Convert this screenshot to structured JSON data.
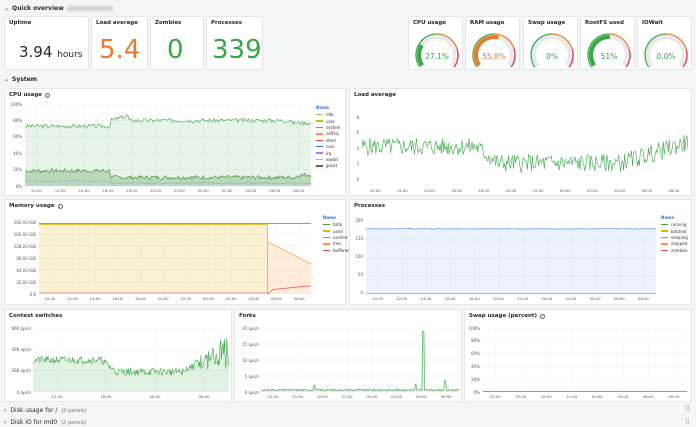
{
  "sections": {
    "quick_overview": "Quick overview",
    "system": "System",
    "disk_usage": "Disk usage for /",
    "disk_usage_count": "(2 panels)",
    "disk_io": "Disk IO for md0",
    "disk_io_count": "(2 panels)"
  },
  "stats": {
    "uptime": {
      "title": "Uptime",
      "value": "3.94",
      "unit": "hours"
    },
    "load": {
      "title": "Load average",
      "value": "5.4",
      "color": "#ec7a2a"
    },
    "zombies": {
      "title": "Zombies",
      "value": "0",
      "color": "#37a744"
    },
    "processes": {
      "title": "Processes",
      "value": "339",
      "color": "#37a744"
    }
  },
  "gauges": [
    {
      "title": "CPU usage",
      "value": "27.1%",
      "fraction": 0.271,
      "color": "#37a744"
    },
    {
      "title": "RAM usage",
      "value": "55.8%",
      "fraction": 0.558,
      "color": "#ec7a2a"
    },
    {
      "title": "Swap usage",
      "value": "0%",
      "fraction": 0,
      "color": "#37a744"
    },
    {
      "title": "RootFS used",
      "value": "51%",
      "fraction": 0.51,
      "color": "#37a744"
    },
    {
      "title": "IOWait",
      "value": "0.0%",
      "fraction": 0,
      "color": "#37a744"
    }
  ],
  "panels": {
    "cpu": {
      "title": "CPU usage",
      "yticks": [
        "100%",
        "80%",
        "60%",
        "40%",
        "20%",
        "0%"
      ],
      "xticks": [
        "10:00",
        "12:00",
        "14:00",
        "16:00",
        "18:00",
        "20:00",
        "22:00",
        "00:00",
        "02:00",
        "04:00",
        "06:00",
        "08:00"
      ],
      "legend_header": "Name",
      "legend": [
        {
          "name": "idle",
          "color": "#9ac48a"
        },
        {
          "name": "user",
          "color": "#e0b400"
        },
        {
          "name": "system",
          "color": "#5794f2"
        },
        {
          "name": "softirq",
          "color": "#ff9830"
        },
        {
          "name": "steal",
          "color": "#f2495c"
        },
        {
          "name": "nice",
          "color": "#3274d9"
        },
        {
          "name": "irq",
          "color": "#b877d9"
        },
        {
          "name": "iowait",
          "color": "#8ab8ff"
        },
        {
          "name": "guest",
          "color": "#37872d"
        }
      ]
    },
    "load": {
      "title": "Load average",
      "yticks": [
        "8",
        "6",
        "4",
        "2",
        "0"
      ],
      "xticks": [
        "10:00",
        "12:00",
        "14:00",
        "16:00",
        "18:00",
        "20:00",
        "22:00",
        "00:00",
        "02:00",
        "04:00",
        "06:00",
        "08:00"
      ]
    },
    "memory": {
      "title": "Memory usage",
      "yticks": [
        "192.00 GiB",
        "160.00 GiB",
        "128.00 GiB",
        "96.00 GiB",
        "64.00 GiB",
        "32.00 GiB",
        "0 B"
      ],
      "xticks": [
        "10:00",
        "12:00",
        "14:00",
        "16:00",
        "18:00",
        "20:00",
        "22:00",
        "00:00",
        "02:00",
        "04:00",
        "06:00",
        "08:00"
      ],
      "legend_header": "Name",
      "legend": [
        {
          "name": "total",
          "color": "#37a744"
        },
        {
          "name": "used",
          "color": "#e0b400"
        },
        {
          "name": "cached",
          "color": "#5794f2"
        },
        {
          "name": "free",
          "color": "#ff9830"
        },
        {
          "name": "buffered",
          "color": "#f2495c"
        }
      ]
    },
    "processes": {
      "title": "Processes",
      "yticks": [
        "200",
        "150",
        "100",
        "50",
        "0"
      ],
      "xticks": [
        "10:00",
        "12:00",
        "14:00",
        "16:00",
        "18:00",
        "20:00",
        "22:00",
        "00:00",
        "02:00",
        "04:00",
        "06:00",
        "08:00"
      ],
      "legend_header": "Name",
      "legend": [
        {
          "name": "running",
          "color": "#37a744"
        },
        {
          "name": "blocked",
          "color": "#e0b400"
        },
        {
          "name": "sleeping",
          "color": "#5794f2"
        },
        {
          "name": "stopped",
          "color": "#ff9830"
        },
        {
          "name": "zombies",
          "color": "#f2495c"
        }
      ]
    },
    "ctx": {
      "title": "Context switches",
      "yticks": [
        "60K ops/s",
        "40K ops/s",
        "20K ops/s",
        "0 ops/s"
      ],
      "xticks": [
        "12:00",
        "18:00",
        "00:00",
        "06:00"
      ]
    },
    "forks": {
      "title": "Forks",
      "yticks": [
        "20 ops/s",
        "15 ops/s",
        "10 ops/s",
        "5 ops/s",
        "0 ops/s"
      ],
      "xticks": [
        "12:00",
        "15:00",
        "18:00",
        "21:00",
        "00:00",
        "03:00",
        "06:00",
        "09:00"
      ]
    },
    "swap": {
      "title": "Swap usage (percent)",
      "yticks": [
        "100%",
        "80%",
        "60%",
        "40%",
        "20%",
        "0%"
      ],
      "xticks": [
        "12:00",
        "15:00",
        "18:00",
        "21:00",
        "00:00",
        "03:00",
        "06:00",
        "09:00"
      ]
    }
  }
}
